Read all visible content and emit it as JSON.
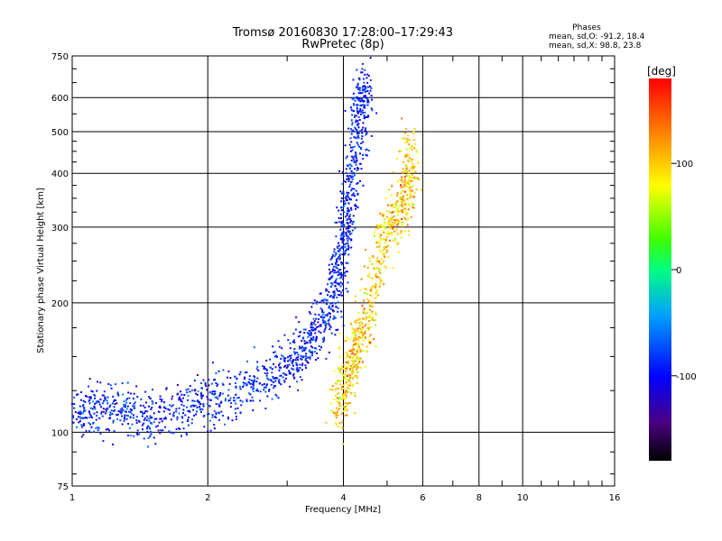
{
  "chart_data": {
    "type": "scatter",
    "title": "Tromsø 20160830 17:28:00–17:29:43",
    "subtitle": "RwPretec (8p)",
    "xlabel": "Frequency [MHz]",
    "ylabel": "Stationary phase Virtual Height [km]",
    "xscale": "log",
    "yscale": "log",
    "xlim": [
      1,
      16
    ],
    "ylim": [
      75,
      750
    ],
    "x_ticks": [
      "1",
      "2",
      "4",
      "6",
      "8",
      "10",
      "16"
    ],
    "y_ticks": [
      "75",
      "100",
      "200",
      "300",
      "400",
      "500",
      "600",
      "750"
    ],
    "grid": true,
    "annotation": {
      "title": "Phases",
      "line1": "mean, sd,O: -91.2, 18.4",
      "line2": "mean, sd,X:  98.8, 23.8"
    },
    "colorbar": {
      "label": "[deg]",
      "ticks": [
        "100",
        "0",
        "-100"
      ],
      "range": [
        -180,
        180
      ]
    },
    "series": [
      {
        "name": "O",
        "phase_mean": -91.2,
        "phase_sd": 18.4,
        "trace": [
          [
            1.0,
            112
          ],
          [
            1.1,
            113
          ],
          [
            1.2,
            115
          ],
          [
            1.35,
            110
          ],
          [
            1.5,
            108
          ],
          [
            1.7,
            112
          ],
          [
            1.9,
            116
          ],
          [
            2.1,
            120
          ],
          [
            2.4,
            127
          ],
          [
            2.7,
            133
          ],
          [
            3.0,
            142
          ],
          [
            3.2,
            150
          ],
          [
            3.4,
            165
          ],
          [
            3.6,
            180
          ],
          [
            3.8,
            200
          ],
          [
            3.9,
            230
          ],
          [
            4.0,
            270
          ],
          [
            4.05,
            310
          ],
          [
            4.15,
            370
          ],
          [
            4.25,
            440
          ],
          [
            4.35,
            520
          ],
          [
            4.4,
            600
          ],
          [
            4.45,
            640
          ]
        ]
      },
      {
        "name": "X",
        "phase_mean": 98.8,
        "phase_sd": 23.8,
        "trace": [
          [
            3.9,
            110
          ],
          [
            4.0,
            125
          ],
          [
            4.1,
            140
          ],
          [
            4.25,
            155
          ],
          [
            4.4,
            165
          ],
          [
            4.6,
            195
          ],
          [
            4.8,
            260
          ],
          [
            5.0,
            300
          ],
          [
            5.3,
            320
          ],
          [
            5.5,
            350
          ],
          [
            5.6,
            400
          ],
          [
            5.6,
            480
          ]
        ]
      }
    ]
  }
}
